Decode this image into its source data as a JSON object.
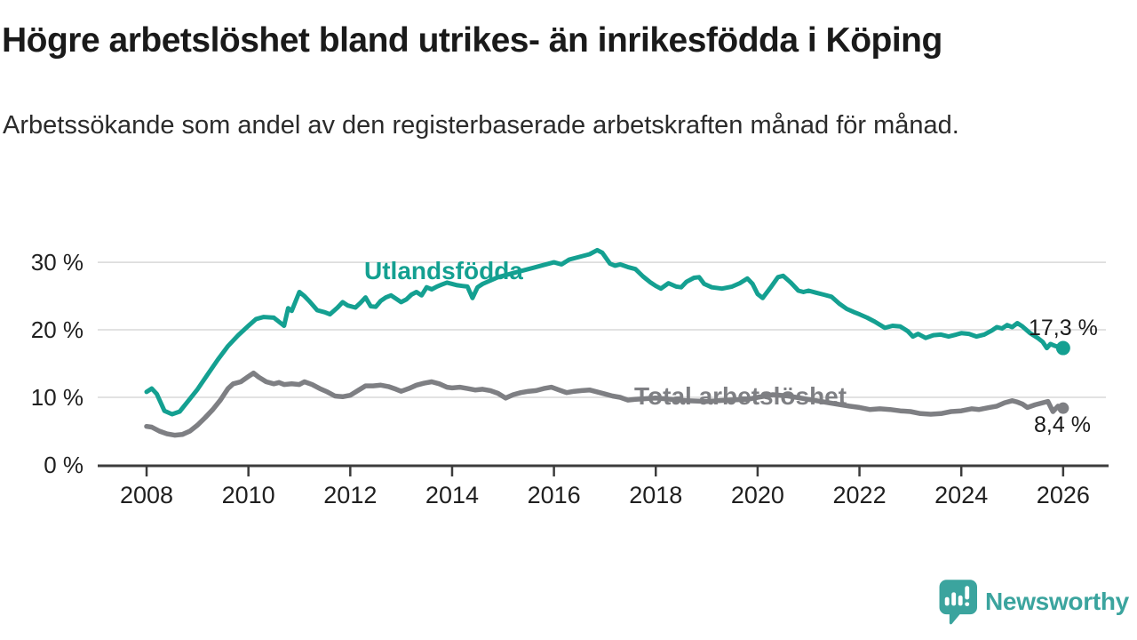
{
  "header": {
    "title": "Högre arbetslöshet bland utrikes- än inrikesfödda i Köping",
    "subtitle": "Arbetssökande som andel av den registerbaserade arbetskraften månad för månad."
  },
  "footer": {
    "brand": "Newsworthy"
  },
  "colors": {
    "teal": "#14A091",
    "gray": "#7E7F83",
    "grid": "#D8D8D8",
    "axis": "#3C3C3C",
    "tick_text": "#1F1F1F",
    "logo": "#3BA49E"
  },
  "chart_data": {
    "type": "line",
    "title": "Högre arbetslöshet bland utrikes- än inrikesfödda i Köping",
    "subtitle": "Arbetssökande som andel av den registerbaserade arbetskraften månad för månad.",
    "xlabel": "",
    "ylabel": "",
    "unit": "%",
    "grid": "horizontal",
    "legend_position": "inline-labels",
    "x_range": [
      2007.04,
      2026.84
    ],
    "y_range": [
      0,
      33.3
    ],
    "x_ticks": [
      2008,
      2010,
      2012,
      2014,
      2016,
      2018,
      2020,
      2022,
      2024,
      2026
    ],
    "y_ticks": [
      0,
      10,
      20,
      30
    ],
    "y_tick_suffix": " %",
    "series": [
      {
        "name": "Utlandsfödda",
        "color": "#14A091",
        "end_label": "17,3 %",
        "end_value": 17.3,
        "points": [
          [
            2008.0,
            10.8
          ],
          [
            2008.1,
            11.3
          ],
          [
            2008.2,
            10.5
          ],
          [
            2008.35,
            8.0
          ],
          [
            2008.5,
            7.5
          ],
          [
            2008.65,
            7.9
          ],
          [
            2008.8,
            9.3
          ],
          [
            2009.0,
            11.2
          ],
          [
            2009.2,
            13.4
          ],
          [
            2009.4,
            15.6
          ],
          [
            2009.6,
            17.6
          ],
          [
            2009.8,
            19.2
          ],
          [
            2010.0,
            20.6
          ],
          [
            2010.15,
            21.6
          ],
          [
            2010.3,
            21.9
          ],
          [
            2010.5,
            21.8
          ],
          [
            2010.65,
            20.9
          ],
          [
            2010.7,
            20.6
          ],
          [
            2010.78,
            23.2
          ],
          [
            2010.85,
            22.8
          ],
          [
            2011.0,
            25.6
          ],
          [
            2011.1,
            25.0
          ],
          [
            2011.2,
            24.2
          ],
          [
            2011.35,
            22.9
          ],
          [
            2011.5,
            22.6
          ],
          [
            2011.6,
            22.3
          ],
          [
            2011.75,
            23.3
          ],
          [
            2011.85,
            24.1
          ],
          [
            2011.95,
            23.6
          ],
          [
            2012.1,
            23.3
          ],
          [
            2012.2,
            24.0
          ],
          [
            2012.3,
            24.8
          ],
          [
            2012.4,
            23.5
          ],
          [
            2012.5,
            23.4
          ],
          [
            2012.6,
            24.3
          ],
          [
            2012.7,
            24.8
          ],
          [
            2012.8,
            25.1
          ],
          [
            2012.9,
            24.6
          ],
          [
            2013.0,
            24.1
          ],
          [
            2013.1,
            24.5
          ],
          [
            2013.2,
            25.2
          ],
          [
            2013.3,
            25.6
          ],
          [
            2013.4,
            25.1
          ],
          [
            2013.5,
            26.3
          ],
          [
            2013.6,
            26.0
          ],
          [
            2013.7,
            26.4
          ],
          [
            2013.8,
            26.7
          ],
          [
            2013.9,
            27.0
          ],
          [
            2014.0,
            26.8
          ],
          [
            2014.1,
            26.6
          ],
          [
            2014.2,
            26.5
          ],
          [
            2014.3,
            26.4
          ],
          [
            2014.4,
            24.7
          ],
          [
            2014.5,
            26.3
          ],
          [
            2014.6,
            26.8
          ],
          [
            2014.75,
            27.3
          ],
          [
            2014.9,
            27.8
          ],
          [
            2015.0,
            28.0
          ],
          [
            2015.2,
            28.4
          ],
          [
            2015.4,
            28.8
          ],
          [
            2015.6,
            29.2
          ],
          [
            2015.8,
            29.6
          ],
          [
            2016.0,
            30.0
          ],
          [
            2016.15,
            29.7
          ],
          [
            2016.3,
            30.4
          ],
          [
            2016.5,
            30.8
          ],
          [
            2016.7,
            31.2
          ],
          [
            2016.85,
            31.8
          ],
          [
            2016.95,
            31.4
          ],
          [
            2017.1,
            29.8
          ],
          [
            2017.2,
            29.5
          ],
          [
            2017.3,
            29.7
          ],
          [
            2017.45,
            29.3
          ],
          [
            2017.6,
            29.0
          ],
          [
            2017.75,
            27.9
          ],
          [
            2017.9,
            27.0
          ],
          [
            2018.0,
            26.5
          ],
          [
            2018.1,
            26.1
          ],
          [
            2018.25,
            26.9
          ],
          [
            2018.4,
            26.4
          ],
          [
            2018.5,
            26.3
          ],
          [
            2018.6,
            27.1
          ],
          [
            2018.75,
            27.7
          ],
          [
            2018.85,
            27.8
          ],
          [
            2018.95,
            26.8
          ],
          [
            2019.1,
            26.3
          ],
          [
            2019.3,
            26.1
          ],
          [
            2019.5,
            26.4
          ],
          [
            2019.65,
            26.9
          ],
          [
            2019.8,
            27.6
          ],
          [
            2019.9,
            26.8
          ],
          [
            2020.0,
            25.3
          ],
          [
            2020.1,
            24.7
          ],
          [
            2020.25,
            26.2
          ],
          [
            2020.4,
            27.8
          ],
          [
            2020.5,
            28.0
          ],
          [
            2020.65,
            27.0
          ],
          [
            2020.8,
            25.8
          ],
          [
            2020.9,
            25.6
          ],
          [
            2021.0,
            25.8
          ],
          [
            2021.15,
            25.5
          ],
          [
            2021.3,
            25.2
          ],
          [
            2021.45,
            24.9
          ],
          [
            2021.6,
            23.9
          ],
          [
            2021.75,
            23.1
          ],
          [
            2021.9,
            22.6
          ],
          [
            2022.0,
            22.3
          ],
          [
            2022.15,
            21.8
          ],
          [
            2022.3,
            21.2
          ],
          [
            2022.5,
            20.3
          ],
          [
            2022.65,
            20.6
          ],
          [
            2022.8,
            20.5
          ],
          [
            2022.95,
            19.8
          ],
          [
            2023.05,
            19.0
          ],
          [
            2023.15,
            19.4
          ],
          [
            2023.3,
            18.8
          ],
          [
            2023.45,
            19.2
          ],
          [
            2023.6,
            19.3
          ],
          [
            2023.75,
            19.0
          ],
          [
            2023.9,
            19.3
          ],
          [
            2024.0,
            19.5
          ],
          [
            2024.15,
            19.4
          ],
          [
            2024.3,
            19.0
          ],
          [
            2024.45,
            19.3
          ],
          [
            2024.6,
            19.9
          ],
          [
            2024.7,
            20.4
          ],
          [
            2024.8,
            20.2
          ],
          [
            2024.9,
            20.7
          ],
          [
            2025.0,
            20.4
          ],
          [
            2025.1,
            21.0
          ],
          [
            2025.2,
            20.5
          ],
          [
            2025.35,
            19.5
          ],
          [
            2025.5,
            18.8
          ],
          [
            2025.6,
            18.2
          ],
          [
            2025.68,
            17.3
          ],
          [
            2025.75,
            17.9
          ],
          [
            2025.85,
            17.6
          ],
          [
            2026.0,
            17.3
          ]
        ]
      },
      {
        "name": "Total arbetslöshet",
        "color": "#7E7F83",
        "end_label": "8,4 %",
        "end_value": 8.4,
        "points": [
          [
            2008.0,
            5.7
          ],
          [
            2008.1,
            5.6
          ],
          [
            2008.25,
            5.0
          ],
          [
            2008.4,
            4.6
          ],
          [
            2008.55,
            4.4
          ],
          [
            2008.7,
            4.5
          ],
          [
            2008.85,
            5.0
          ],
          [
            2009.0,
            5.9
          ],
          [
            2009.15,
            7.0
          ],
          [
            2009.3,
            8.2
          ],
          [
            2009.45,
            9.6
          ],
          [
            2009.6,
            11.3
          ],
          [
            2009.7,
            12.0
          ],
          [
            2009.85,
            12.3
          ],
          [
            2010.0,
            13.1
          ],
          [
            2010.1,
            13.6
          ],
          [
            2010.2,
            13.0
          ],
          [
            2010.35,
            12.3
          ],
          [
            2010.5,
            12.0
          ],
          [
            2010.6,
            12.2
          ],
          [
            2010.7,
            11.9
          ],
          [
            2010.85,
            12.0
          ],
          [
            2011.0,
            11.9
          ],
          [
            2011.1,
            12.3
          ],
          [
            2011.25,
            11.9
          ],
          [
            2011.4,
            11.3
          ],
          [
            2011.55,
            10.8
          ],
          [
            2011.7,
            10.2
          ],
          [
            2011.85,
            10.1
          ],
          [
            2012.0,
            10.3
          ],
          [
            2012.15,
            11.0
          ],
          [
            2012.3,
            11.7
          ],
          [
            2012.45,
            11.7
          ],
          [
            2012.6,
            11.8
          ],
          [
            2012.75,
            11.6
          ],
          [
            2012.9,
            11.2
          ],
          [
            2013.0,
            10.9
          ],
          [
            2013.15,
            11.3
          ],
          [
            2013.3,
            11.8
          ],
          [
            2013.45,
            12.1
          ],
          [
            2013.6,
            12.3
          ],
          [
            2013.75,
            12.0
          ],
          [
            2013.9,
            11.5
          ],
          [
            2014.0,
            11.4
          ],
          [
            2014.15,
            11.5
          ],
          [
            2014.3,
            11.3
          ],
          [
            2014.45,
            11.1
          ],
          [
            2014.6,
            11.2
          ],
          [
            2014.75,
            11.0
          ],
          [
            2014.9,
            10.6
          ],
          [
            2015.05,
            9.9
          ],
          [
            2015.2,
            10.4
          ],
          [
            2015.35,
            10.7
          ],
          [
            2015.5,
            10.9
          ],
          [
            2015.65,
            11.0
          ],
          [
            2015.8,
            11.3
          ],
          [
            2015.95,
            11.5
          ],
          [
            2016.1,
            11.1
          ],
          [
            2016.25,
            10.7
          ],
          [
            2016.4,
            10.9
          ],
          [
            2016.55,
            11.0
          ],
          [
            2016.7,
            11.1
          ],
          [
            2016.85,
            10.8
          ],
          [
            2017.0,
            10.5
          ],
          [
            2017.15,
            10.2
          ],
          [
            2017.3,
            10.0
          ],
          [
            2017.45,
            9.6
          ],
          [
            2017.6,
            9.7
          ],
          [
            2017.8,
            9.8
          ],
          [
            2018.0,
            9.9
          ],
          [
            2018.3,
            9.7
          ],
          [
            2018.6,
            9.5
          ],
          [
            2019.0,
            9.4
          ],
          [
            2019.4,
            9.6
          ],
          [
            2019.8,
            9.7
          ],
          [
            2020.0,
            10.0
          ],
          [
            2020.3,
            10.4
          ],
          [
            2020.6,
            10.2
          ],
          [
            2021.0,
            9.7
          ],
          [
            2021.4,
            9.2
          ],
          [
            2021.8,
            8.7
          ],
          [
            2022.0,
            8.5
          ],
          [
            2022.2,
            8.2
          ],
          [
            2022.4,
            8.3
          ],
          [
            2022.6,
            8.2
          ],
          [
            2022.8,
            8.0
          ],
          [
            2023.0,
            7.9
          ],
          [
            2023.2,
            7.6
          ],
          [
            2023.4,
            7.5
          ],
          [
            2023.6,
            7.6
          ],
          [
            2023.8,
            7.9
          ],
          [
            2024.0,
            8.0
          ],
          [
            2024.2,
            8.3
          ],
          [
            2024.35,
            8.2
          ],
          [
            2024.55,
            8.5
          ],
          [
            2024.7,
            8.7
          ],
          [
            2024.85,
            9.2
          ],
          [
            2025.0,
            9.5
          ],
          [
            2025.1,
            9.3
          ],
          [
            2025.2,
            9.0
          ],
          [
            2025.3,
            8.5
          ],
          [
            2025.45,
            8.9
          ],
          [
            2025.6,
            9.2
          ],
          [
            2025.7,
            9.4
          ],
          [
            2025.8,
            7.9
          ],
          [
            2025.9,
            8.7
          ],
          [
            2026.0,
            8.4
          ]
        ]
      }
    ]
  }
}
